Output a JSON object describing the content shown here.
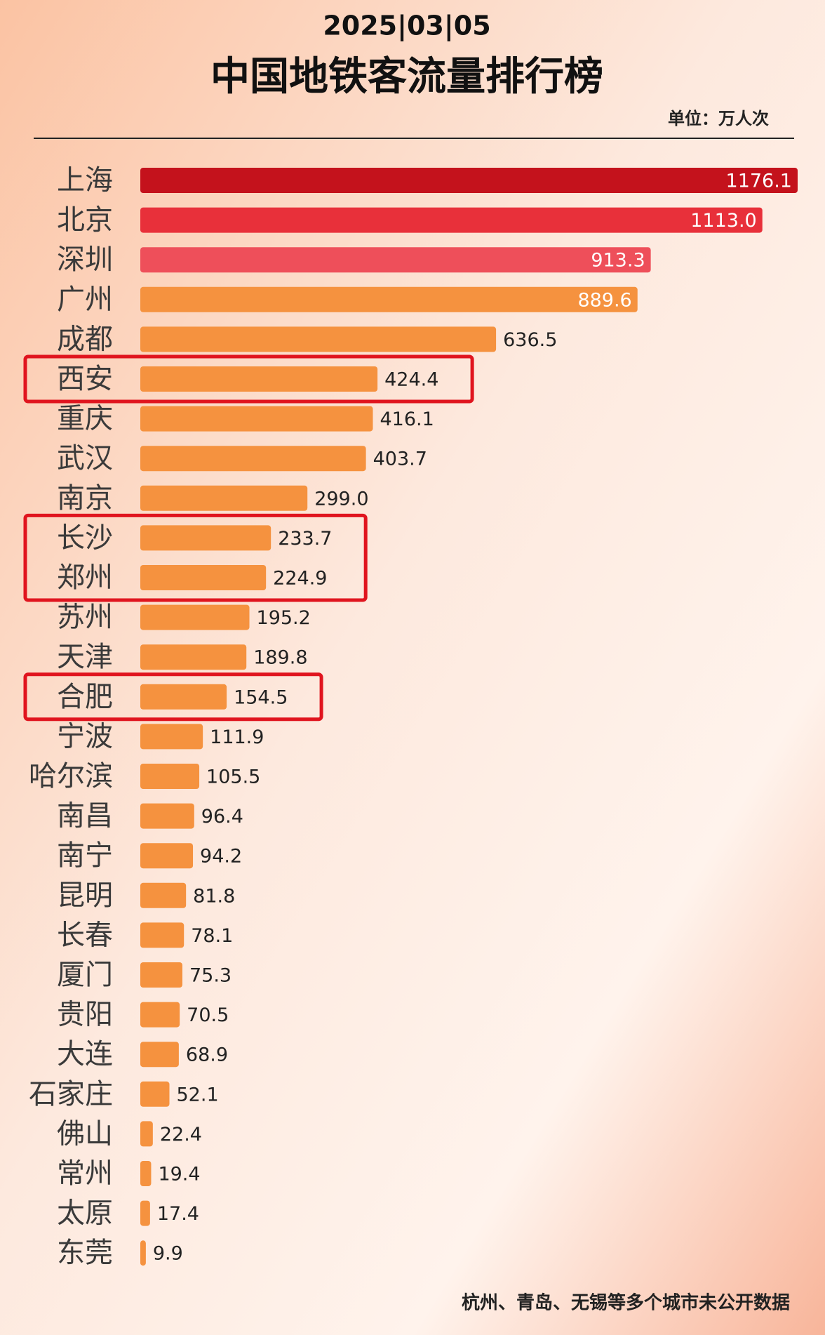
{
  "chart_data": {
    "type": "bar",
    "orientation": "horizontal",
    "date": "2025|03|05",
    "title": "中国地铁客流量排行榜",
    "unit": "单位：万人次",
    "footnote": "杭州、青岛、无锡等多个城市未公开数据",
    "categories": [
      "上海",
      "北京",
      "深圳",
      "广州",
      "成都",
      "西安",
      "重庆",
      "武汉",
      "南京",
      "长沙",
      "郑州",
      "苏州",
      "天津",
      "合肥",
      "宁波",
      "哈尔滨",
      "南昌",
      "南宁",
      "昆明",
      "长春",
      "厦门",
      "贵阳",
      "大连",
      "石家庄",
      "佛山",
      "常州",
      "太原",
      "东莞"
    ],
    "values": [
      1176.1,
      1113.0,
      913.3,
      889.6,
      636.5,
      424.4,
      416.1,
      403.7,
      299.0,
      233.7,
      224.9,
      195.2,
      189.8,
      154.5,
      111.9,
      105.5,
      96.4,
      94.2,
      81.8,
      78.1,
      75.3,
      70.5,
      68.9,
      52.1,
      22.4,
      19.4,
      17.4,
      9.9
    ],
    "value_labels": [
      "1176.1",
      "1113.0",
      "913.3",
      "889.6",
      "636.5",
      "424.4",
      "416.1",
      "403.7",
      "299.0",
      "233.7",
      "224.9",
      "195.2",
      "189.8",
      "154.5",
      "111.9",
      "105.5",
      "96.4",
      "94.2",
      "81.8",
      "78.1",
      "75.3",
      "70.5",
      "68.9",
      "52.1",
      "22.4",
      "19.4",
      "17.4",
      "9.9"
    ],
    "colors": [
      "#c4121c",
      "#e8303a",
      "#ee4f5a",
      "#f5923f",
      "#f5923f",
      "#f5923f",
      "#f5923f",
      "#f5923f",
      "#f5923f",
      "#f5923f",
      "#f5923f",
      "#f5923f",
      "#f5923f",
      "#f5923f",
      "#f5923f",
      "#f5923f",
      "#f5923f",
      "#f5923f",
      "#f5923f",
      "#f5923f",
      "#f5923f",
      "#f5923f",
      "#f5923f",
      "#f5923f",
      "#f5923f",
      "#f5923f",
      "#f5923f",
      "#f5923f"
    ],
    "highlight_groups": [
      [
        5
      ],
      [
        9,
        10
      ],
      [
        13
      ]
    ]
  }
}
